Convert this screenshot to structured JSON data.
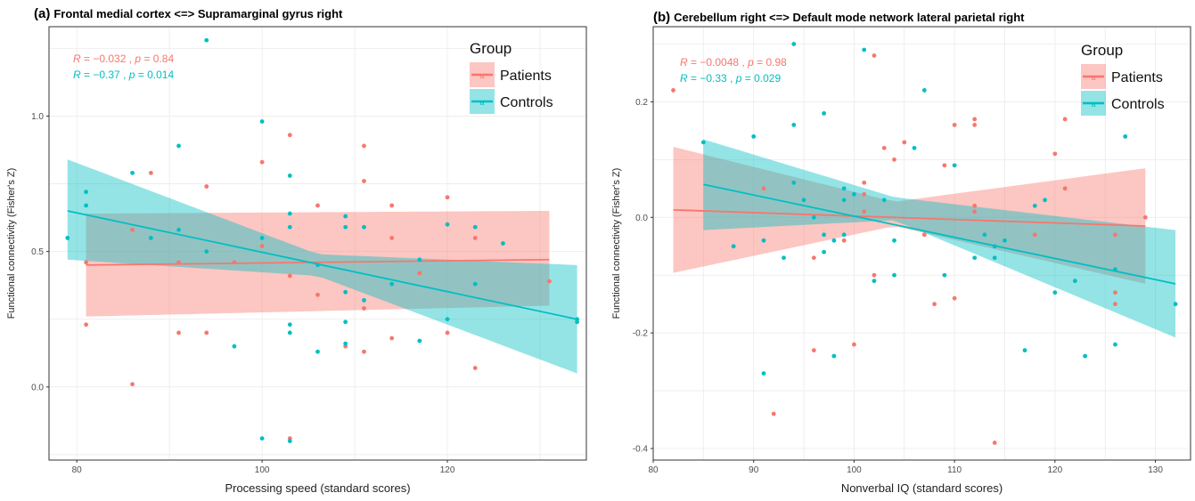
{
  "colors": {
    "patients": "#F8766D",
    "controls": "#00BFC4",
    "panel_bg": "#ffffff",
    "grid": "#ebebeb",
    "frame": "#333333"
  },
  "legend": {
    "title": "Group",
    "items": [
      "Patients",
      "Controls"
    ]
  },
  "chart_data": [
    {
      "type": "scatter",
      "panel_label": "(a)",
      "title": "Frontal medial cortex <=> Supramarginal gyrus right",
      "xlabel": "Processing speed (standard scores)",
      "ylabel": "Functional connectivity (Fisher's Z)",
      "xlim": [
        77,
        135
      ],
      "ylim": [
        -0.27,
        1.33
      ],
      "x_ticks": [
        80,
        100,
        120
      ],
      "y_ticks": [
        0.0,
        0.5,
        1.0
      ],
      "x_tick_labels": [
        "80",
        "100",
        "120"
      ],
      "y_tick_labels": [
        "0.0",
        "0.5",
        "1.0"
      ],
      "grid": true,
      "legend_position": "top-right",
      "stats": [
        {
          "group": "Patients",
          "R": "−0.032",
          "p": "0.84"
        },
        {
          "group": "Controls",
          "R": "−0.37",
          "p": "0.014"
        }
      ],
      "series": [
        {
          "name": "Patients",
          "points": [
            [
              81,
              0.46
            ],
            [
              81,
              0.23
            ],
            [
              86,
              0.01
            ],
            [
              86,
              0.58
            ],
            [
              88,
              0.79
            ],
            [
              91,
              0.46
            ],
            [
              91,
              0.2
            ],
            [
              94,
              0.74
            ],
            [
              94,
              0.2
            ],
            [
              97,
              0.46
            ],
            [
              100,
              0.83
            ],
            [
              100,
              0.52
            ],
            [
              103,
              0.93
            ],
            [
              103,
              0.41
            ],
            [
              103,
              -0.19
            ],
            [
              106,
              0.67
            ],
            [
              106,
              0.34
            ],
            [
              109,
              0.15
            ],
            [
              111,
              0.89
            ],
            [
              111,
              0.76
            ],
            [
              111,
              0.29
            ],
            [
              111,
              0.13
            ],
            [
              114,
              0.67
            ],
            [
              114,
              0.55
            ],
            [
              114,
              0.18
            ],
            [
              117,
              0.42
            ],
            [
              120,
              0.7
            ],
            [
              120,
              0.2
            ],
            [
              123,
              0.55
            ],
            [
              123,
              0.07
            ],
            [
              131,
              0.39
            ]
          ],
          "fit_line": [
            [
              81,
              0.45
            ],
            [
              131,
              0.47
            ]
          ],
          "ci_band": {
            "x": [
              81,
              131
            ],
            "lower": [
              0.26,
              0.3
            ],
            "upper": [
              0.64,
              0.65
            ]
          }
        },
        {
          "name": "Controls",
          "points": [
            [
              79,
              0.55
            ],
            [
              81,
              0.72
            ],
            [
              81,
              0.67
            ],
            [
              86,
              0.79
            ],
            [
              88,
              0.55
            ],
            [
              91,
              0.89
            ],
            [
              91,
              0.58
            ],
            [
              94,
              1.28
            ],
            [
              94,
              0.5
            ],
            [
              97,
              0.15
            ],
            [
              100,
              0.98
            ],
            [
              100,
              0.55
            ],
            [
              100,
              -0.19
            ],
            [
              103,
              0.78
            ],
            [
              103,
              0.64
            ],
            [
              103,
              0.59
            ],
            [
              103,
              0.23
            ],
            [
              103,
              0.2
            ],
            [
              103,
              -0.2
            ],
            [
              106,
              0.45
            ],
            [
              106,
              0.13
            ],
            [
              109,
              0.63
            ],
            [
              109,
              0.59
            ],
            [
              109,
              0.35
            ],
            [
              109,
              0.24
            ],
            [
              109,
              0.16
            ],
            [
              111,
              0.59
            ],
            [
              111,
              0.32
            ],
            [
              114,
              0.38
            ],
            [
              117,
              0.47
            ],
            [
              117,
              0.17
            ],
            [
              120,
              0.6
            ],
            [
              120,
              0.25
            ],
            [
              123,
              0.59
            ],
            [
              123,
              0.38
            ],
            [
              126,
              0.53
            ],
            [
              134,
              0.25
            ],
            [
              134,
              0.24
            ]
          ],
          "fit_line": [
            [
              79,
              0.65
            ],
            [
              134,
              0.25
            ]
          ],
          "ci_band": {
            "x": [
              79,
              106,
              134
            ],
            "lower": [
              0.47,
              0.41,
              0.05
            ],
            "upper": [
              0.84,
              0.49,
              0.45
            ]
          }
        }
      ]
    },
    {
      "type": "scatter",
      "panel_label": "(b)",
      "title": "Cerebellum right  <=> Default mode network lateral parietal right",
      "xlabel": "Nonverbal IQ (standard scores)",
      "ylabel": "Functional connectivity (Fisher's Z)",
      "xlim": [
        80,
        133.5
      ],
      "ylim": [
        -0.42,
        0.33
      ],
      "x_ticks": [
        80,
        90,
        100,
        110,
        120,
        130
      ],
      "y_ticks": [
        -0.4,
        -0.2,
        0.0,
        0.2
      ],
      "x_tick_labels": [
        "80",
        "90",
        "100",
        "110",
        "120",
        "130"
      ],
      "y_tick_labels": [
        "-0.4",
        "-0.2",
        "0.0",
        "0.2"
      ],
      "grid": true,
      "legend_position": "top-right",
      "stats": [
        {
          "group": "Patients",
          "R": "−0.0048",
          "p": "0.98"
        },
        {
          "group": "Controls",
          "R": "−0.33",
          "p": "0.029"
        }
      ],
      "series": [
        {
          "name": "Patients",
          "points": [
            [
              82,
              0.22
            ],
            [
              91,
              0.05
            ],
            [
              92,
              -0.34
            ],
            [
              96,
              -0.23
            ],
            [
              96,
              -0.07
            ],
            [
              99,
              -0.04
            ],
            [
              100,
              -0.22
            ],
            [
              101,
              0.06
            ],
            [
              101,
              0.04
            ],
            [
              101,
              0.01
            ],
            [
              102,
              0.28
            ],
            [
              102,
              -0.1
            ],
            [
              103,
              0.12
            ],
            [
              104,
              0.1
            ],
            [
              105,
              0.13
            ],
            [
              107,
              -0.03
            ],
            [
              108,
              -0.15
            ],
            [
              109,
              0.09
            ],
            [
              110,
              0.16
            ],
            [
              110,
              -0.14
            ],
            [
              112,
              0.17
            ],
            [
              112,
              0.16
            ],
            [
              112,
              0.02
            ],
            [
              112,
              0.01
            ],
            [
              114,
              -0.39
            ],
            [
              118,
              -0.03
            ],
            [
              120,
              0.11
            ],
            [
              121,
              0.17
            ],
            [
              121,
              0.05
            ],
            [
              126,
              -0.03
            ],
            [
              126,
              -0.13
            ],
            [
              126,
              -0.15
            ],
            [
              129,
              0.0
            ]
          ],
          "fit_line": [
            [
              82,
              0.013
            ],
            [
              129,
              -0.015
            ]
          ],
          "ci_band": {
            "x": [
              82,
              104,
              129
            ],
            "lower": [
              -0.096,
              -0.015,
              -0.115
            ],
            "upper": [
              0.122,
              0.027,
              0.085
            ]
          }
        },
        {
          "name": "Controls",
          "points": [
            [
              85,
              0.13
            ],
            [
              88,
              -0.05
            ],
            [
              90,
              0.14
            ],
            [
              91,
              -0.27
            ],
            [
              91,
              -0.04
            ],
            [
              93,
              -0.07
            ],
            [
              94,
              0.3
            ],
            [
              94,
              0.16
            ],
            [
              94,
              0.06
            ],
            [
              95,
              0.03
            ],
            [
              96,
              0.0
            ],
            [
              97,
              0.18
            ],
            [
              97,
              -0.03
            ],
            [
              97,
              -0.06
            ],
            [
              98,
              -0.24
            ],
            [
              98,
              -0.04
            ],
            [
              99,
              0.05
            ],
            [
              99,
              0.03
            ],
            [
              99,
              -0.03
            ],
            [
              100,
              0.04
            ],
            [
              101,
              0.29
            ],
            [
              102,
              -0.11
            ],
            [
              103,
              0.03
            ],
            [
              104,
              -0.04
            ],
            [
              104,
              -0.1
            ],
            [
              106,
              0.12
            ],
            [
              107,
              0.22
            ],
            [
              109,
              -0.1
            ],
            [
              110,
              0.09
            ],
            [
              112,
              -0.07
            ],
            [
              113,
              -0.03
            ],
            [
              114,
              -0.05
            ],
            [
              114,
              -0.07
            ],
            [
              115,
              -0.04
            ],
            [
              117,
              -0.23
            ],
            [
              118,
              0.02
            ],
            [
              119,
              0.03
            ],
            [
              120,
              -0.13
            ],
            [
              122,
              -0.11
            ],
            [
              123,
              -0.24
            ],
            [
              126,
              -0.09
            ],
            [
              126,
              -0.22
            ],
            [
              127,
              0.14
            ],
            [
              132,
              -0.15
            ]
          ],
          "fit_line": [
            [
              85,
              0.057
            ],
            [
              132,
              -0.115
            ]
          ],
          "ci_band": {
            "x": [
              85,
              104,
              132
            ],
            "lower": [
              -0.022,
              -0.005,
              -0.208
            ],
            "upper": [
              0.135,
              0.035,
              -0.022
            ]
          }
        }
      ]
    }
  ]
}
